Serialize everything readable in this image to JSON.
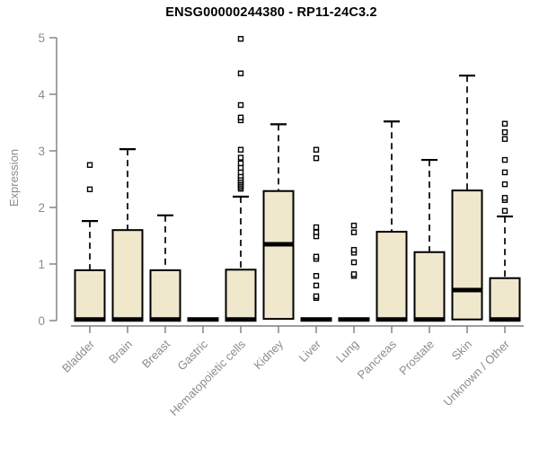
{
  "chart_data": {
    "type": "boxplot",
    "title": "ENSG00000244380 - RP11-24C3.2",
    "ylabel": "Expression",
    "xlabel": "",
    "ylim": [
      0,
      5
    ],
    "yticks": [
      0,
      1,
      2,
      3,
      4,
      5
    ],
    "grid": false,
    "legend": "none",
    "categories": [
      "Bladder",
      "Brain",
      "Breast",
      "Gastric",
      "Hematopoietic cells",
      "Kidney",
      "Liver",
      "Lung",
      "Pancreas",
      "Prostate",
      "Skin",
      "Unknown / Other"
    ],
    "series": [
      {
        "category": "Bladder",
        "whisker_low": 0,
        "q1": 0,
        "median": 0.02,
        "q3": 0.89,
        "whisker_high": 1.76,
        "outliers": [
          2.32,
          2.75
        ]
      },
      {
        "category": "Brain",
        "whisker_low": 0,
        "q1": 0,
        "median": 0.02,
        "q3": 1.6,
        "whisker_high": 3.03,
        "outliers": []
      },
      {
        "category": "Breast",
        "whisker_low": 0,
        "q1": 0,
        "median": 0.02,
        "q3": 0.89,
        "whisker_high": 1.86,
        "outliers": []
      },
      {
        "category": "Gastric",
        "whisker_low": 0,
        "q1": 0,
        "median": 0.02,
        "q3": 0.02,
        "whisker_high": 0.02,
        "outliers": []
      },
      {
        "category": "Hematopoietic cells",
        "whisker_low": 0,
        "q1": 0,
        "median": 0.02,
        "q3": 0.9,
        "whisker_high": 2.19,
        "outliers": [
          2.33,
          2.36,
          2.39,
          2.42,
          2.45,
          2.48,
          2.52,
          2.56,
          2.62,
          2.7,
          2.78,
          2.88,
          3.02,
          3.54,
          3.59,
          3.81,
          4.37,
          4.98
        ]
      },
      {
        "category": "Kidney",
        "whisker_low": 0,
        "q1": 0.03,
        "median": 1.35,
        "q3": 2.29,
        "whisker_high": 3.47,
        "outliers": []
      },
      {
        "category": "Liver",
        "whisker_low": 0,
        "q1": 0,
        "median": 0.02,
        "q3": 0.02,
        "whisker_high": 0.02,
        "outliers": [
          0.4,
          0.43,
          0.62,
          0.79,
          1.09,
          1.13,
          1.49,
          1.56,
          1.65,
          2.87,
          3.02
        ]
      },
      {
        "category": "Lung",
        "whisker_low": 0,
        "q1": 0,
        "median": 0.02,
        "q3": 0.02,
        "whisker_high": 0.02,
        "outliers": [
          0.79,
          0.82,
          1.03,
          1.2,
          1.25,
          1.56,
          1.68
        ]
      },
      {
        "category": "Pancreas",
        "whisker_low": 0,
        "q1": 0,
        "median": 0.02,
        "q3": 1.57,
        "whisker_high": 3.52,
        "outliers": []
      },
      {
        "category": "Prostate",
        "whisker_low": 0,
        "q1": 0,
        "median": 0.02,
        "q3": 1.21,
        "whisker_high": 2.84,
        "outliers": []
      },
      {
        "category": "Skin",
        "whisker_low": 0,
        "q1": 0.02,
        "median": 0.54,
        "q3": 2.3,
        "whisker_high": 4.33,
        "outliers": []
      },
      {
        "category": "Unknown / Other",
        "whisker_low": 0,
        "q1": 0,
        "median": 0.02,
        "q3": 0.75,
        "whisker_high": 1.84,
        "outliers": [
          1.94,
          2.13,
          2.17,
          2.41,
          2.62,
          2.84,
          3.21,
          3.33,
          3.48
        ]
      }
    ],
    "colors": {
      "box_fill": "#efe8cd",
      "box_stroke": "#000000",
      "median": "#000000",
      "whisker": "#000000",
      "outlier_fill": "#ffffff",
      "outlier_stroke": "#000000",
      "axis": "#7d7d7d",
      "tick_label": "#8c8c8c",
      "title": "#000000"
    }
  }
}
